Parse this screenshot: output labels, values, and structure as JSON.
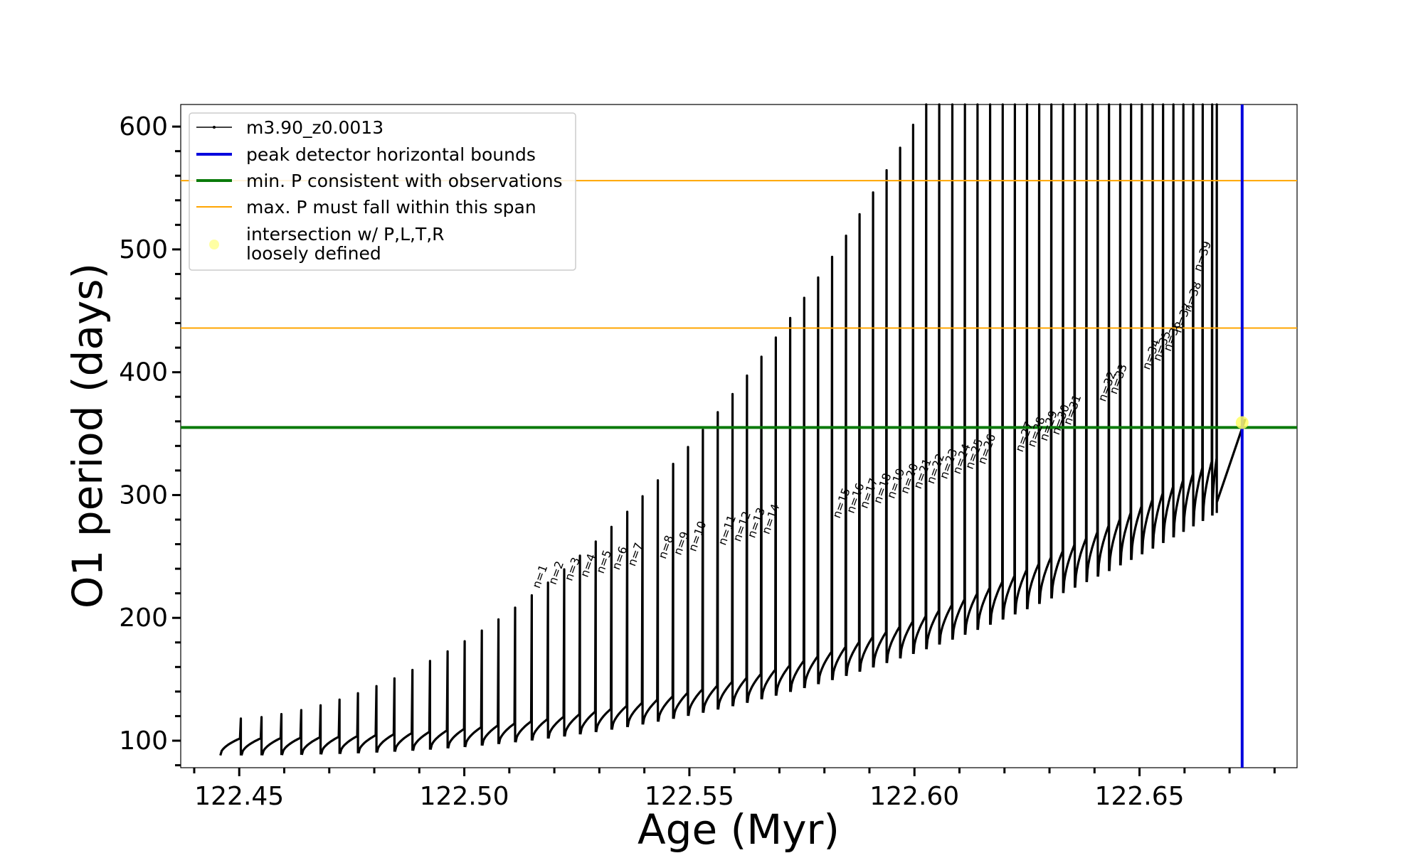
{
  "chart_data": {
    "type": "line",
    "xlabel": "Age (Myr)",
    "ylabel": "O1 period (days)",
    "xlim": [
      122.437,
      122.685
    ],
    "ylim": [
      78,
      618
    ],
    "x_ticks": [
      122.45,
      122.5,
      122.55,
      122.6,
      122.65
    ],
    "x_tick_labels": [
      "122.45",
      "122.50",
      "122.55",
      "122.60",
      "122.65"
    ],
    "y_ticks": [
      100,
      200,
      300,
      400,
      500,
      600
    ],
    "y_tick_labels": [
      "100",
      "200",
      "300",
      "400",
      "500",
      "600"
    ],
    "x_minor_step": 0.01,
    "y_minor_step": 20,
    "legend_placement": "upper-left",
    "grid": false,
    "series": [
      {
        "name": "m3.90_z0.0013",
        "color": "#000000",
        "style": "line-with-point-markers",
        "description_points": {
          "pulse_ages": [
            122.4458,
            122.4505,
            122.4551,
            122.4595,
            122.4639,
            122.4682,
            122.4724,
            122.4765,
            122.4806,
            122.4846,
            122.4886,
            122.4925,
            122.4964,
            122.5002,
            122.504,
            122.5077,
            122.5114,
            122.5151,
            122.5187,
            122.5223,
            122.5258,
            122.5293,
            122.5328,
            122.5363,
            122.5397,
            122.5431,
            122.5465,
            122.5498,
            122.5531,
            122.5564,
            122.5597,
            122.5629,
            122.5661,
            122.5693,
            122.5725,
            122.5756,
            122.5787,
            122.5818,
            122.5849,
            122.5879,
            122.5909,
            122.5939,
            122.5969,
            122.5998,
            122.6027,
            122.6056,
            122.6085,
            122.6113,
            122.6141,
            122.6169,
            122.6197,
            122.6224,
            122.6251,
            122.6278,
            122.6305,
            122.6331,
            122.6357,
            122.6383,
            122.6408,
            122.6433,
            122.6458,
            122.6482,
            122.6506,
            122.653,
            122.6553,
            122.6576,
            122.6598,
            122.662,
            122.6641,
            122.6662,
            122.6672
          ],
          "baseline_period_start": 100,
          "baseline_period_end": 340,
          "final_period": 362
        }
      },
      {
        "name": "peak detector horizontal bounds",
        "color": "#0000dd",
        "orientation": "vertical",
        "x": 122.6728
      },
      {
        "name": "min. P consistent with observations",
        "color": "#0a7a0a",
        "orientation": "horizontal",
        "y": 355
      },
      {
        "name": "max. P must fall within this span",
        "color": "#ffa500",
        "orientation": "horizontal",
        "y": [
          436,
          556
        ]
      },
      {
        "name": "intersection w/ P,L,T,R\nloosely defined",
        "color": "#ffff66",
        "type": "scatter",
        "points": [
          {
            "x": 122.6728,
            "y": 359
          }
        ]
      }
    ],
    "pulse_labels": [
      {
        "text": "n=1",
        "x": 122.5151,
        "y": 220
      },
      {
        "text": "n=2",
        "x": 122.5187,
        "y": 223
      },
      {
        "text": "n=3",
        "x": 122.5223,
        "y": 226
      },
      {
        "text": "n=4",
        "x": 122.5258,
        "y": 229
      },
      {
        "text": "n=5",
        "x": 122.5293,
        "y": 232
      },
      {
        "text": "n=6",
        "x": 122.5328,
        "y": 235
      },
      {
        "text": "n=7",
        "x": 122.5363,
        "y": 238
      },
      {
        "text": "n=8",
        "x": 122.5431,
        "y": 244
      },
      {
        "text": "n=9",
        "x": 122.5465,
        "y": 247
      },
      {
        "text": "n=10",
        "x": 122.5498,
        "y": 250
      },
      {
        "text": "n=11",
        "x": 122.5564,
        "y": 255
      },
      {
        "text": "n=12",
        "x": 122.5597,
        "y": 258
      },
      {
        "text": "n=13",
        "x": 122.5629,
        "y": 261
      },
      {
        "text": "n=14",
        "x": 122.5661,
        "y": 264
      },
      {
        "text": "n=15",
        "x": 122.5818,
        "y": 277
      },
      {
        "text": "n=16",
        "x": 122.5849,
        "y": 281
      },
      {
        "text": "n=17",
        "x": 122.5879,
        "y": 285
      },
      {
        "text": "n=18",
        "x": 122.5909,
        "y": 289
      },
      {
        "text": "n=19",
        "x": 122.5939,
        "y": 293
      },
      {
        "text": "n=20",
        "x": 122.5969,
        "y": 297
      },
      {
        "text": "n=21",
        "x": 122.5998,
        "y": 301
      },
      {
        "text": "n=22",
        "x": 122.6027,
        "y": 305
      },
      {
        "text": "n=23",
        "x": 122.6056,
        "y": 309
      },
      {
        "text": "n=24",
        "x": 122.6085,
        "y": 313
      },
      {
        "text": "n=25",
        "x": 122.6113,
        "y": 317
      },
      {
        "text": "n=26",
        "x": 122.6141,
        "y": 321
      },
      {
        "text": "n=27",
        "x": 122.6224,
        "y": 331
      },
      {
        "text": "n=28",
        "x": 122.6251,
        "y": 335
      },
      {
        "text": "n=29",
        "x": 122.6278,
        "y": 340
      },
      {
        "text": "n=30",
        "x": 122.6305,
        "y": 345
      },
      {
        "text": "n=31",
        "x": 122.6331,
        "y": 353
      },
      {
        "text": "n=32",
        "x": 122.6408,
        "y": 372
      },
      {
        "text": "n=33",
        "x": 122.6433,
        "y": 378
      },
      {
        "text": "n=34",
        "x": 122.6506,
        "y": 398
      },
      {
        "text": "n=35",
        "x": 122.653,
        "y": 405
      },
      {
        "text": "n=36",
        "x": 122.6553,
        "y": 413
      },
      {
        "text": "n=37",
        "x": 122.6576,
        "y": 428
      },
      {
        "text": "n=38",
        "x": 122.6598,
        "y": 445
      },
      {
        "text": "n=39",
        "x": 122.662,
        "y": 478
      }
    ]
  },
  "legend": [
    {
      "key": "model",
      "label": "m3.90_z0.0013"
    },
    {
      "key": "peak",
      "label": "peak detector horizontal bounds"
    },
    {
      "key": "minp",
      "label": "min. P consistent with observations"
    },
    {
      "key": "maxp",
      "label": "max. P must fall within this span"
    },
    {
      "key": "inter1",
      "label": "intersection w/ P,L,T,R"
    },
    {
      "key": "inter2",
      "label": "loosely defined"
    }
  ]
}
